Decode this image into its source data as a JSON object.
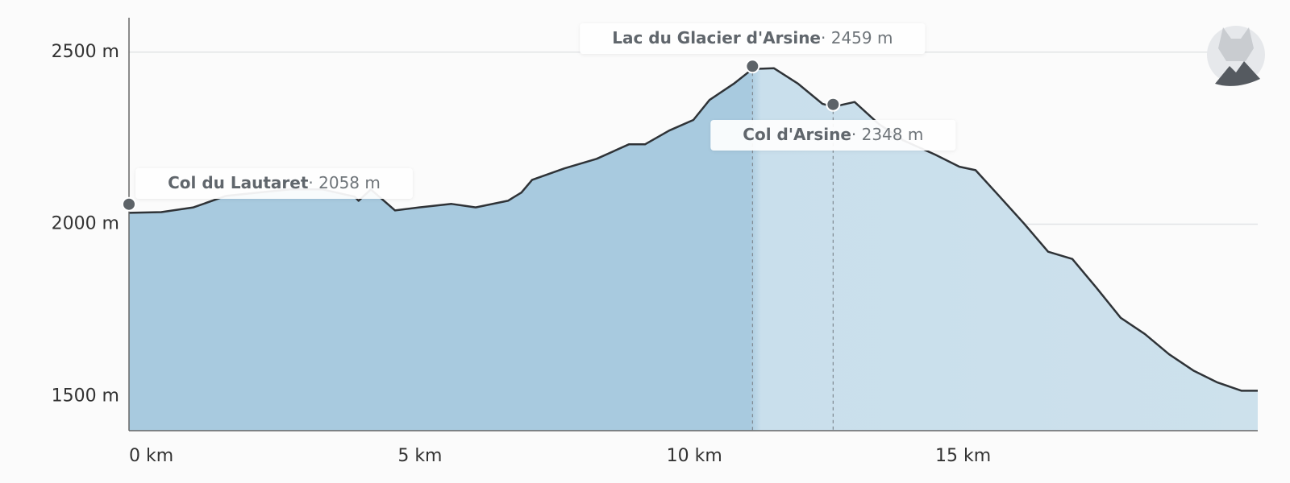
{
  "chart_data": {
    "type": "area",
    "x": [
      0,
      0.6,
      1.2,
      1.8,
      2.4,
      3.0,
      3.6,
      4.2,
      4.27,
      4.5,
      4.95,
      5.4,
      6.0,
      6.45,
      7.05,
      7.3,
      7.5,
      8.1,
      8.7,
      9.3,
      9.6,
      10.05,
      10.5,
      10.8,
      11.25,
      11.6,
      12.0,
      12.45,
      12.9,
      13.1,
      13.5,
      13.95,
      14.4,
      15.0,
      15.45,
      15.75,
      16.2,
      16.65,
      17.1,
      17.55,
      18.0,
      18.45,
      18.9,
      19.35,
      19.8,
      20.25,
      20.7,
      21.0
    ],
    "values": [
      2033,
      2035,
      2049,
      2082,
      2092,
      2101,
      2101,
      2080,
      2068,
      2101,
      2040,
      2049,
      2059,
      2049,
      2068,
      2092,
      2129,
      2162,
      2190,
      2232,
      2232,
      2272,
      2303,
      2361,
      2408,
      2451,
      2453,
      2408,
      2350,
      2341,
      2355,
      2291,
      2244,
      2202,
      2167,
      2157,
      2080,
      2002,
      1920,
      1899,
      1815,
      1728,
      1681,
      1622,
      1575,
      1540,
      1516,
      1516
    ],
    "color": "#2f3337",
    "xlim": [
      0,
      21
    ],
    "ylim": [
      1400,
      2600
    ],
    "xticks": [
      {
        "value": 0,
        "label": "0 km"
      },
      {
        "value": 5,
        "label": "5 km"
      },
      {
        "value": 10,
        "label": "10 km"
      },
      {
        "value": 15,
        "label": "15 km"
      }
    ],
    "yticks": [
      {
        "value": 1500,
        "label": "1500 m"
      },
      {
        "value": 2000,
        "label": "2000 m"
      },
      {
        "value": 2500,
        "label": "2500 m"
      }
    ],
    "grid": true,
    "annotations": [
      {
        "name": "Col du Lautaret",
        "label": "· 2058 m",
        "x": 0,
        "value": 2058
      },
      {
        "name": "Lac du Glacier d'Arsine",
        "label": "· 2459 m",
        "x": 11.6,
        "value": 2459
      },
      {
        "name": "Col d'Arsine",
        "label": "· 2348 m",
        "x": 13.1,
        "value": 2348
      }
    ]
  }
}
